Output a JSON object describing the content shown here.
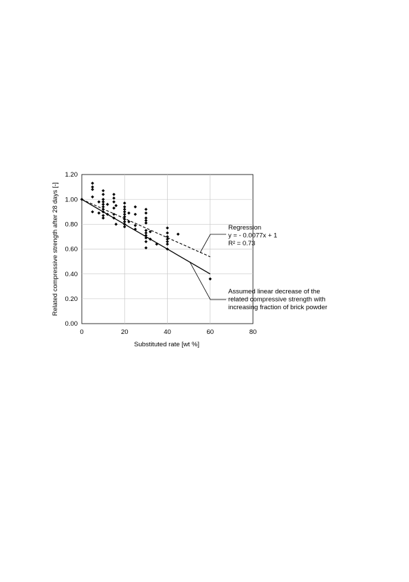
{
  "chart_data": {
    "type": "scatter",
    "title": "",
    "xlabel": "Substituted rate [wt %]",
    "ylabel": "Related compressive strength after 28 days [-]",
    "xlim": [
      0,
      80
    ],
    "ylim": [
      0.0,
      1.2
    ],
    "x_ticks": [
      0,
      20,
      40,
      60,
      80
    ],
    "y_ticks": [
      "0.00",
      "0.20",
      "0.40",
      "0.60",
      "0.80",
      "1.00",
      "1.20"
    ],
    "grid": "major",
    "series": [
      {
        "marker": "diamond",
        "points": [
          [
            0,
            1.0
          ],
          [
            5,
            1.13
          ],
          [
            5,
            1.1
          ],
          [
            5,
            1.08
          ],
          [
            5,
            1.02
          ],
          [
            5,
            0.9
          ],
          [
            8,
            0.98
          ],
          [
            8,
            0.89
          ],
          [
            10,
            1.07
          ],
          [
            10,
            1.04
          ],
          [
            10,
            1.0
          ],
          [
            10,
            0.98
          ],
          [
            10,
            0.96
          ],
          [
            10,
            0.94
          ],
          [
            10,
            0.92
          ],
          [
            10,
            0.9
          ],
          [
            10,
            0.87
          ],
          [
            10,
            0.85
          ],
          [
            12,
            0.96
          ],
          [
            12,
            0.88
          ],
          [
            15,
            1.04
          ],
          [
            15,
            1.01
          ],
          [
            15,
            0.98
          ],
          [
            15,
            0.93
          ],
          [
            15,
            0.88
          ],
          [
            15,
            0.85
          ],
          [
            16,
            0.95
          ],
          [
            16,
            0.8
          ],
          [
            20,
            0.97
          ],
          [
            20,
            0.94
          ],
          [
            20,
            0.92
          ],
          [
            20,
            0.9
          ],
          [
            20,
            0.88
          ],
          [
            20,
            0.86
          ],
          [
            20,
            0.84
          ],
          [
            20,
            0.82
          ],
          [
            20,
            0.8
          ],
          [
            20,
            0.78
          ],
          [
            22,
            0.89
          ],
          [
            22,
            0.82
          ],
          [
            25,
            0.94
          ],
          [
            25,
            0.88
          ],
          [
            25,
            0.79
          ],
          [
            25,
            0.76
          ],
          [
            30,
            0.92
          ],
          [
            30,
            0.89
          ],
          [
            30,
            0.85
          ],
          [
            30,
            0.83
          ],
          [
            30,
            0.81
          ],
          [
            30,
            0.75
          ],
          [
            30,
            0.73
          ],
          [
            30,
            0.71
          ],
          [
            30,
            0.69
          ],
          [
            30,
            0.66
          ],
          [
            30,
            0.61
          ],
          [
            32,
            0.74
          ],
          [
            32,
            0.68
          ],
          [
            35,
            0.64
          ],
          [
            40,
            0.77
          ],
          [
            40,
            0.73
          ],
          [
            40,
            0.7
          ],
          [
            40,
            0.68
          ],
          [
            40,
            0.66
          ],
          [
            40,
            0.64
          ],
          [
            40,
            0.6
          ],
          [
            45,
            0.72
          ],
          [
            60,
            0.36
          ]
        ]
      }
    ],
    "lines": [
      {
        "style": "dashed",
        "x": [
          0,
          60
        ],
        "y": [
          1.0,
          0.538
        ]
      },
      {
        "style": "solid",
        "x": [
          0,
          60
        ],
        "y": [
          1.0,
          0.4
        ]
      }
    ],
    "annotations": [
      {
        "lines": [
          "Regression",
          "y = - 0.0077x + 1",
          "R² = 0.73"
        ]
      },
      {
        "lines": [
          "Assumed linear decrease of the",
          "related compressive strength with",
          "increasing fraction of brick powder"
        ]
      }
    ]
  }
}
